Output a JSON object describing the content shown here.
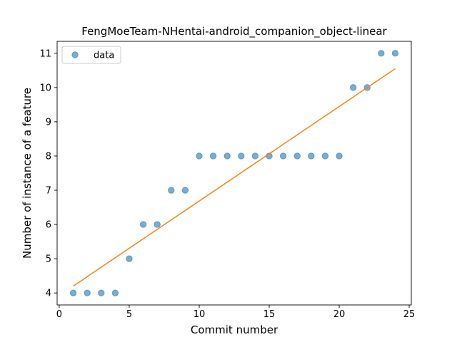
{
  "chart_data": {
    "type": "scatter",
    "title": "FengMoeTeam-NHentai-android_companion_object-linear",
    "xlabel": "Commit number",
    "ylabel": "Number of instance of a feature",
    "xlim": [
      -0.15,
      25.15
    ],
    "ylim": [
      3.65,
      11.35
    ],
    "xticks": [
      0,
      5,
      10,
      15,
      20,
      25
    ],
    "yticks": [
      4,
      5,
      6,
      7,
      8,
      9,
      10,
      11
    ],
    "grid": false,
    "legend": {
      "placement": "top-left",
      "entries": [
        "data"
      ]
    },
    "series": [
      {
        "name": "data",
        "kind": "scatter",
        "color": "#1f77b4",
        "x": [
          1,
          2,
          3,
          4,
          5,
          6,
          7,
          8,
          9,
          10,
          11,
          12,
          13,
          14,
          15,
          16,
          17,
          18,
          19,
          20,
          21,
          22,
          23,
          24
        ],
        "y": [
          4,
          4,
          4,
          4,
          5,
          6,
          6,
          7,
          7,
          8,
          8,
          8,
          8,
          8,
          8,
          8,
          8,
          8,
          8,
          8,
          10,
          10,
          11,
          11
        ]
      },
      {
        "kind": "line",
        "color": "#ff7f0e",
        "x": [
          1,
          24
        ],
        "y": [
          4.2,
          10.55
        ]
      }
    ]
  }
}
